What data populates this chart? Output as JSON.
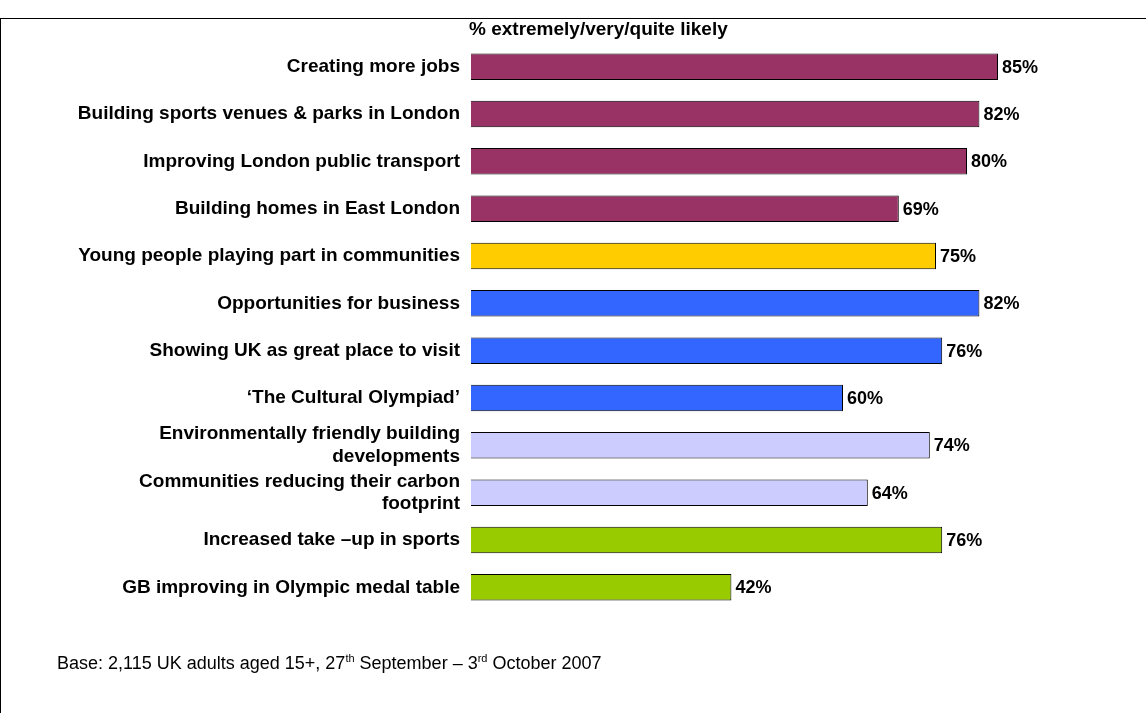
{
  "chart_data": {
    "type": "bar",
    "orientation": "horizontal",
    "title": "% extremely/very/quite likely",
    "categories": [
      "Creating more jobs",
      "Building sports venues & parks in London",
      "Improving London public transport",
      "Building homes in East London",
      "Young people playing part in communities",
      "Opportunities for business",
      "Showing UK as great place to visit",
      "‘The Cultural Olympiad’",
      "Environmentally friendly building developments",
      "Communities reducing their carbon footprint",
      "Increased take –up in sports",
      "GB improving in Olympic medal table"
    ],
    "values": [
      85,
      82,
      80,
      69,
      75,
      82,
      76,
      60,
      74,
      64,
      76,
      42
    ],
    "value_labels": [
      "85%",
      "82%",
      "80%",
      "69%",
      "75%",
      "82%",
      "76%",
      "60%",
      "74%",
      "64%",
      "76%",
      "42%"
    ],
    "colors": [
      "#993366",
      "#993366",
      "#993366",
      "#993366",
      "#ffcc00",
      "#3366ff",
      "#3366ff",
      "#3366ff",
      "#ccccff",
      "#ccccff",
      "#99cc00",
      "#99cc00"
    ],
    "annotations": [
      "Base: 2,115 UK adults aged 15+, 27$^{th}$ September – 3$^{rd}$ October 2007"
    ]
  }
}
